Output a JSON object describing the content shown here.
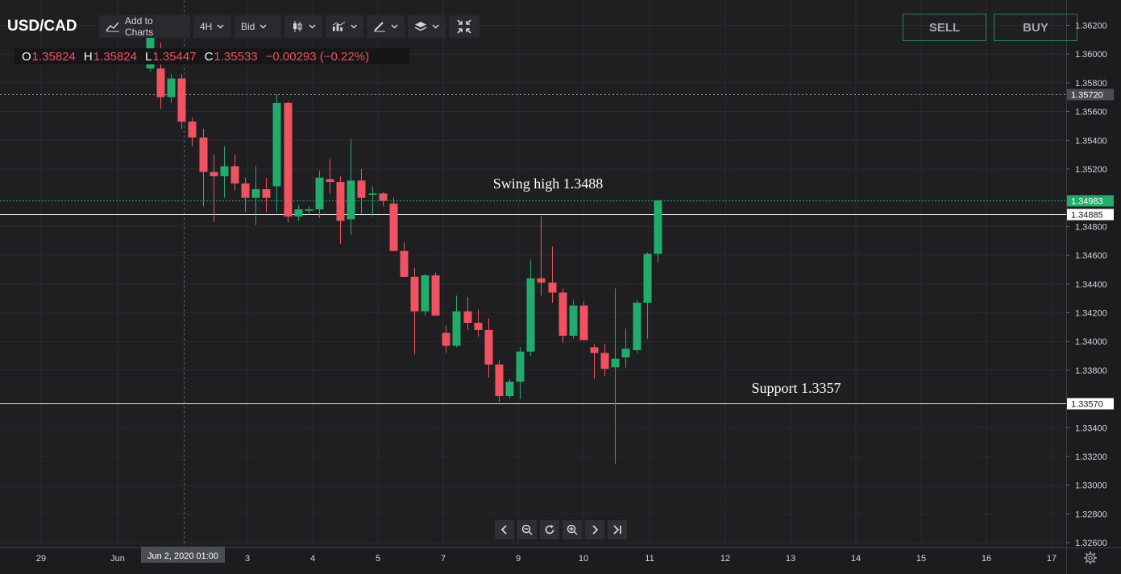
{
  "symbol": "USD/CAD",
  "toolbar": {
    "add_to_charts": "Add to Charts",
    "interval": "4H",
    "price_type": "Bid",
    "icons": [
      "chart-line-icon",
      "candle-type-icon",
      "indicators-icon",
      "drawing-tools-icon",
      "layers-icon",
      "fullscreen-icon"
    ]
  },
  "ohlc": {
    "o_label": "O",
    "o": "1.35824",
    "h_label": "H",
    "h": "1.35824",
    "l_label": "L",
    "l": "1.35447",
    "c_label": "C",
    "c": "1.35533",
    "change": "−0.00293 (−0.22%)"
  },
  "buttons": {
    "sell": "SELL",
    "buy": "BUY"
  },
  "colors": {
    "up": "#22ab6b",
    "down": "#ef5361",
    "background": "#1f1f22",
    "grid": "#2a2b30"
  },
  "nav_icons": [
    "chevron-left-icon",
    "zoom-out-icon",
    "reset-icon",
    "zoom-in-icon",
    "chevron-right-icon",
    "scroll-to-end-icon"
  ],
  "chart_data": {
    "type": "candlestick",
    "price_axis": {
      "ticks": [
        "1.36200",
        "1.36000",
        "1.35800",
        "1.35600",
        "1.35400",
        "1.35200",
        "1.34800",
        "1.34600",
        "1.34400",
        "1.34200",
        "1.34000",
        "1.33800",
        "1.33400",
        "1.33200",
        "1.33000",
        "1.32800",
        "1.32600"
      ],
      "ylim": [
        1.3256,
        1.3625
      ]
    },
    "time_axis": {
      "ticks": [
        "29",
        "Jun",
        "3",
        "4",
        "5",
        "7",
        "9",
        "10",
        "11",
        "12",
        "13",
        "14",
        "15",
        "16",
        "17"
      ],
      "crosshair_label": "Jun 2, 2020   01:00"
    },
    "price_labels": [
      {
        "text": "1.35720",
        "price": 1.3572,
        "style": "dotted"
      },
      {
        "text": "1.34983",
        "price": 1.34983,
        "style": "last"
      },
      {
        "text": "1.34885",
        "price": 1.34885,
        "style": "line"
      },
      {
        "text": "1.33570",
        "price": 1.3357,
        "style": "line"
      }
    ],
    "annotations": [
      {
        "text": "Swing high 1.3488",
        "price": 1.3488
      },
      {
        "text": "Support 1.3357",
        "price": 1.3357
      }
    ],
    "candles": [
      {
        "o": 1.359,
        "h": 1.3625,
        "l": 1.3588,
        "c": 1.3625
      },
      {
        "o": 1.359,
        "h": 1.3608,
        "l": 1.3562,
        "c": 1.357
      },
      {
        "o": 1.357,
        "h": 1.3586,
        "l": 1.3566,
        "c": 1.3583
      },
      {
        "o": 1.3583,
        "h": 1.3586,
        "l": 1.3548,
        "c": 1.3553
      },
      {
        "o": 1.3553,
        "h": 1.3556,
        "l": 1.3536,
        "c": 1.3542
      },
      {
        "o": 1.3542,
        "h": 1.3548,
        "l": 1.3494,
        "c": 1.3518
      },
      {
        "o": 1.3518,
        "h": 1.353,
        "l": 1.3483,
        "c": 1.3515
      },
      {
        "o": 1.3515,
        "h": 1.3536,
        "l": 1.35,
        "c": 1.3522
      },
      {
        "o": 1.3522,
        "h": 1.353,
        "l": 1.3505,
        "c": 1.351
      },
      {
        "o": 1.351,
        "h": 1.3514,
        "l": 1.349,
        "c": 1.35
      },
      {
        "o": 1.35,
        "h": 1.3522,
        "l": 1.3481,
        "c": 1.3506
      },
      {
        "o": 1.3506,
        "h": 1.3514,
        "l": 1.349,
        "c": 1.35
      },
      {
        "o": 1.3508,
        "h": 1.3572,
        "l": 1.349,
        "c": 1.3566
      },
      {
        "o": 1.3566,
        "h": 1.3567,
        "l": 1.3483,
        "c": 1.3487
      },
      {
        "o": 1.3487,
        "h": 1.3495,
        "l": 1.3484,
        "c": 1.3492
      },
      {
        "o": 1.3491,
        "h": 1.3494,
        "l": 1.3489,
        "c": 1.3492
      },
      {
        "o": 1.3492,
        "h": 1.3519,
        "l": 1.3486,
        "c": 1.3514
      },
      {
        "o": 1.3513,
        "h": 1.3527,
        "l": 1.3503,
        "c": 1.3511
      },
      {
        "o": 1.3511,
        "h": 1.3515,
        "l": 1.3468,
        "c": 1.3484
      },
      {
        "o": 1.3485,
        "h": 1.3541,
        "l": 1.3474,
        "c": 1.3512
      },
      {
        "o": 1.3512,
        "h": 1.352,
        "l": 1.3489,
        "c": 1.35
      },
      {
        "o": 1.3502,
        "h": 1.3508,
        "l": 1.3487,
        "c": 1.3503
      },
      {
        "o": 1.3503,
        "h": 1.3504,
        "l": 1.3494,
        "c": 1.3498
      },
      {
        "o": 1.3496,
        "h": 1.35,
        "l": 1.3463,
        "c": 1.3463
      },
      {
        "o": 1.3463,
        "h": 1.3469,
        "l": 1.3445,
        "c": 1.3445
      },
      {
        "o": 1.3445,
        "h": 1.3451,
        "l": 1.3391,
        "c": 1.3421
      },
      {
        "o": 1.3421,
        "h": 1.3447,
        "l": 1.3418,
        "c": 1.3446
      },
      {
        "o": 1.3446,
        "h": 1.3448,
        "l": 1.3418,
        "c": 1.3418
      },
      {
        "o": 1.3406,
        "h": 1.3411,
        "l": 1.3392,
        "c": 1.3397
      },
      {
        "o": 1.3397,
        "h": 1.3432,
        "l": 1.3396,
        "c": 1.3421
      },
      {
        "o": 1.3421,
        "h": 1.3431,
        "l": 1.3408,
        "c": 1.3413
      },
      {
        "o": 1.3413,
        "h": 1.3422,
        "l": 1.3403,
        "c": 1.3408
      },
      {
        "o": 1.3408,
        "h": 1.3416,
        "l": 1.3375,
        "c": 1.3384
      },
      {
        "o": 1.3384,
        "h": 1.3387,
        "l": 1.3358,
        "c": 1.3362
      },
      {
        "o": 1.3362,
        "h": 1.3374,
        "l": 1.336,
        "c": 1.3372
      },
      {
        "o": 1.3372,
        "h": 1.3396,
        "l": 1.336,
        "c": 1.3393
      },
      {
        "o": 1.3393,
        "h": 1.3457,
        "l": 1.339,
        "c": 1.3444
      },
      {
        "o": 1.3444,
        "h": 1.3487,
        "l": 1.3432,
        "c": 1.3441
      },
      {
        "o": 1.3441,
        "h": 1.3466,
        "l": 1.3427,
        "c": 1.3434
      },
      {
        "o": 1.3434,
        "h": 1.3437,
        "l": 1.3399,
        "c": 1.3404
      },
      {
        "o": 1.3404,
        "h": 1.3429,
        "l": 1.3402,
        "c": 1.3425
      },
      {
        "o": 1.3425,
        "h": 1.3428,
        "l": 1.3401,
        "c": 1.3401
      },
      {
        "o": 1.3396,
        "h": 1.3398,
        "l": 1.3374,
        "c": 1.3392
      },
      {
        "o": 1.3392,
        "h": 1.3398,
        "l": 1.3376,
        "c": 1.3381
      },
      {
        "o": 1.3382,
        "h": 1.3437,
        "l": 1.3315,
        "c": 1.3388
      },
      {
        "o": 1.3389,
        "h": 1.3409,
        "l": 1.3382,
        "c": 1.3395
      },
      {
        "o": 1.3394,
        "h": 1.3429,
        "l": 1.3392,
        "c": 1.3427
      },
      {
        "o": 1.3427,
        "h": 1.3462,
        "l": 1.3402,
        "c": 1.3461
      },
      {
        "o": 1.3461,
        "h": 1.3498,
        "l": 1.3455,
        "c": 1.34983
      }
    ]
  }
}
